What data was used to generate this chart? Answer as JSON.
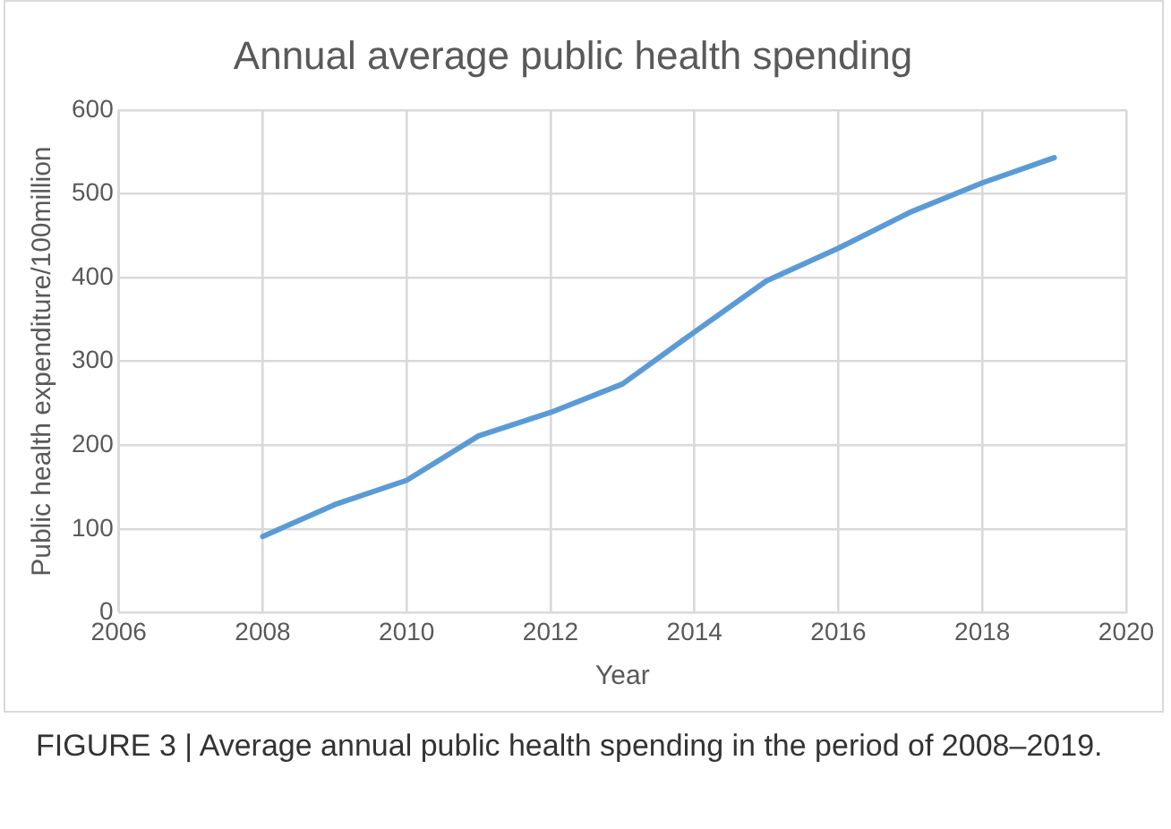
{
  "chart_data": {
    "type": "line",
    "title": "Annual average public health spending",
    "xlabel": "Year",
    "ylabel": "Public health expenditure/100million",
    "x": [
      2008,
      2009,
      2010,
      2011,
      2012,
      2013,
      2014,
      2015,
      2016,
      2017,
      2018,
      2019
    ],
    "series": [
      {
        "color": "#5b9bd5",
        "values": [
          91,
          129,
          158,
          211,
          239,
          273,
          335,
          396,
          435,
          478,
          513,
          543
        ]
      }
    ],
    "xlim": [
      2006,
      2020
    ],
    "xticks": [
      2006,
      2008,
      2010,
      2012,
      2014,
      2016,
      2018,
      2020
    ],
    "ylim": [
      0,
      600
    ],
    "yticks": [
      0,
      100,
      200,
      300,
      400,
      500,
      600
    ],
    "grid": true,
    "legend": false,
    "marker": "none",
    "line_style": "solid",
    "annotations": [
      "FIGURE 3 | Average annual public health spending in the period of 2008–2019."
    ]
  }
}
